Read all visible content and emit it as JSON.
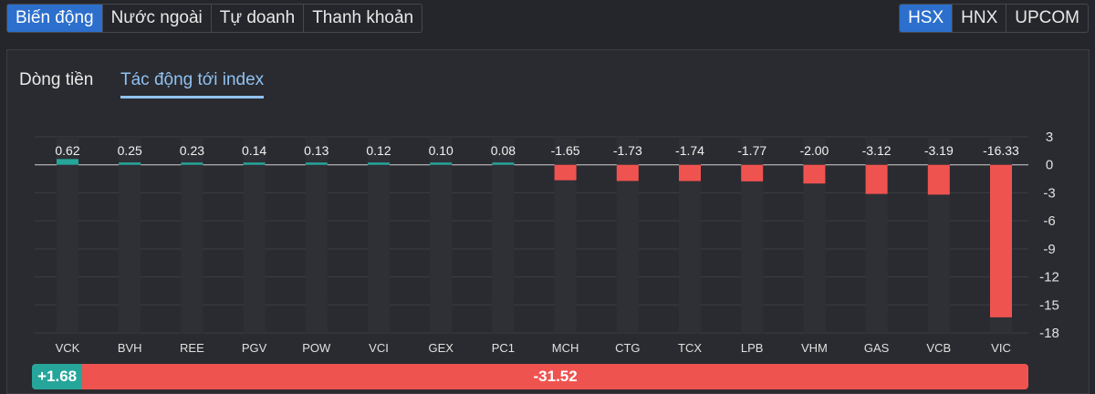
{
  "tabs": [
    {
      "label": "Biến động",
      "active": true
    },
    {
      "label": "Nước ngoài",
      "active": false
    },
    {
      "label": "Tự doanh",
      "active": false
    },
    {
      "label": "Thanh khoản",
      "active": false
    }
  ],
  "exchanges": [
    {
      "label": "HSX",
      "active": true
    },
    {
      "label": "HNX",
      "active": false
    },
    {
      "label": "UPCOM",
      "active": false
    }
  ],
  "subtabs": [
    {
      "label": "Dòng tiền",
      "active": false
    },
    {
      "label": "Tác động tới index",
      "active": true
    }
  ],
  "colors": {
    "positive": "#26a69a",
    "negative": "#ef5350",
    "accent": "#2c6fcc"
  },
  "chart_data": {
    "type": "bar",
    "categories": [
      "VCK",
      "BVH",
      "REE",
      "PGV",
      "POW",
      "VCI",
      "GEX",
      "PC1",
      "MCH",
      "CTG",
      "TCX",
      "LPB",
      "VHM",
      "GAS",
      "VCB",
      "VIC"
    ],
    "values": [
      0.62,
      0.25,
      0.23,
      0.14,
      0.13,
      0.12,
      0.1,
      0.08,
      -1.65,
      -1.73,
      -1.74,
      -1.77,
      -2.0,
      -3.12,
      -3.19,
      -16.33
    ],
    "value_labels": [
      "0.62",
      "0.25",
      "0.23",
      "0.14",
      "0.13",
      "0.12",
      "0.10",
      "0.08",
      "-1.65",
      "-1.73",
      "-1.74",
      "-1.77",
      "-2.00",
      "-3.12",
      "-3.19",
      "-16.33"
    ],
    "yticks": [
      3,
      0,
      -3,
      -6,
      -9,
      -12,
      -15,
      -18
    ],
    "ylim": [
      -18,
      3
    ],
    "grid": true,
    "axis_position": "right"
  },
  "summary": {
    "positive": "+1.68",
    "negative": "-31.52",
    "positive_value": 1.68,
    "negative_value": 31.52
  }
}
